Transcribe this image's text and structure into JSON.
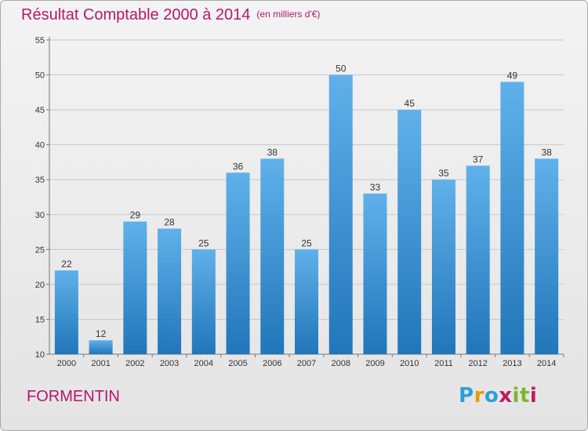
{
  "title": "Résultat Comptable 2000 à 2014",
  "unit": "(en milliers d'€)",
  "commune": "FORMENTIN",
  "logo": {
    "text": "Proxiti",
    "letters": [
      "P",
      "r",
      "o",
      "x",
      "i",
      "t",
      "i"
    ],
    "colors": [
      "#2aa0d8",
      "#e69a00",
      "#2aa0d8",
      "#c4185f",
      "#7cb52e",
      "#7cb52e",
      "#c4185f"
    ]
  },
  "colors": {
    "bar_top": "#60b1ea",
    "bar_bottom": "#2176b9",
    "title": "#b4186c"
  },
  "chart_data": {
    "type": "bar",
    "categories": [
      "2000",
      "2001",
      "2002",
      "2003",
      "2004",
      "2005",
      "2006",
      "2007",
      "2008",
      "2009",
      "2010",
      "2011",
      "2012",
      "2013",
      "2014"
    ],
    "values": [
      22,
      12,
      29,
      28,
      25,
      36,
      38,
      25,
      50,
      33,
      45,
      35,
      37,
      49,
      38
    ],
    "title": "Résultat Comptable 2000 à 2014",
    "ylim": [
      10,
      55
    ],
    "yticks": [
      10,
      15,
      20,
      25,
      30,
      35,
      40,
      45,
      50,
      55
    ],
    "grid": true
  }
}
